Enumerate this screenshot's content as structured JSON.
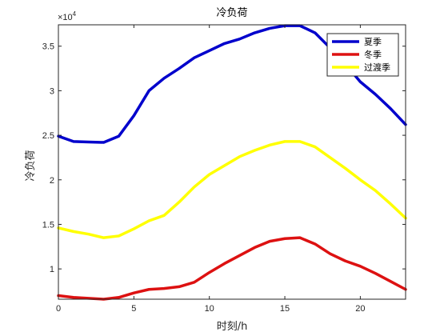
{
  "chart_data": {
    "type": "line",
    "title": "冷负荷",
    "xlabel": "时刻/h",
    "ylabel": "冷负荷",
    "exponent_label": "×10",
    "exponent_power": "4",
    "xlim": [
      0,
      23
    ],
    "ylim": [
      6600,
      37400
    ],
    "xticks": [
      0,
      5,
      10,
      15,
      20
    ],
    "xtick_labels": [
      "0",
      "5",
      "10",
      "15",
      "20"
    ],
    "yticks": [
      10000,
      15000,
      20000,
      25000,
      30000,
      35000
    ],
    "ytick_labels": [
      "1",
      "1.5",
      "2",
      "2.5",
      "3",
      "3.5"
    ],
    "grid": false,
    "legend_position": "top-right",
    "x": [
      0,
      1,
      2,
      3,
      4,
      5,
      6,
      7,
      8,
      9,
      10,
      11,
      12,
      13,
      14,
      15,
      16,
      17,
      18,
      19,
      20,
      21,
      22,
      23
    ],
    "series": [
      {
        "name": "夏季",
        "color": "#0000cc",
        "values": [
          24900,
          24300,
          24250,
          24200,
          24900,
          27200,
          30000,
          31400,
          32500,
          33700,
          34500,
          35300,
          35800,
          36500,
          37000,
          37300,
          37300,
          36500,
          34800,
          33000,
          31000,
          29600,
          28000,
          26200
        ]
      },
      {
        "name": "冬季",
        "color": "#dd1111",
        "values": [
          7000,
          6800,
          6700,
          6600,
          6800,
          7300,
          7700,
          7800,
          8000,
          8500,
          9600,
          10600,
          11500,
          12400,
          13100,
          13400,
          13500,
          12800,
          11700,
          10900,
          10300,
          9500,
          8600,
          7700
        ]
      },
      {
        "name": "过渡季",
        "color": "#ffff00",
        "values": [
          14600,
          14200,
          13900,
          13500,
          13700,
          14500,
          15400,
          16000,
          17500,
          19200,
          20600,
          21600,
          22600,
          23300,
          23900,
          24300,
          24300,
          23700,
          22500,
          21300,
          20000,
          18800,
          17300,
          15700
        ]
      }
    ]
  }
}
